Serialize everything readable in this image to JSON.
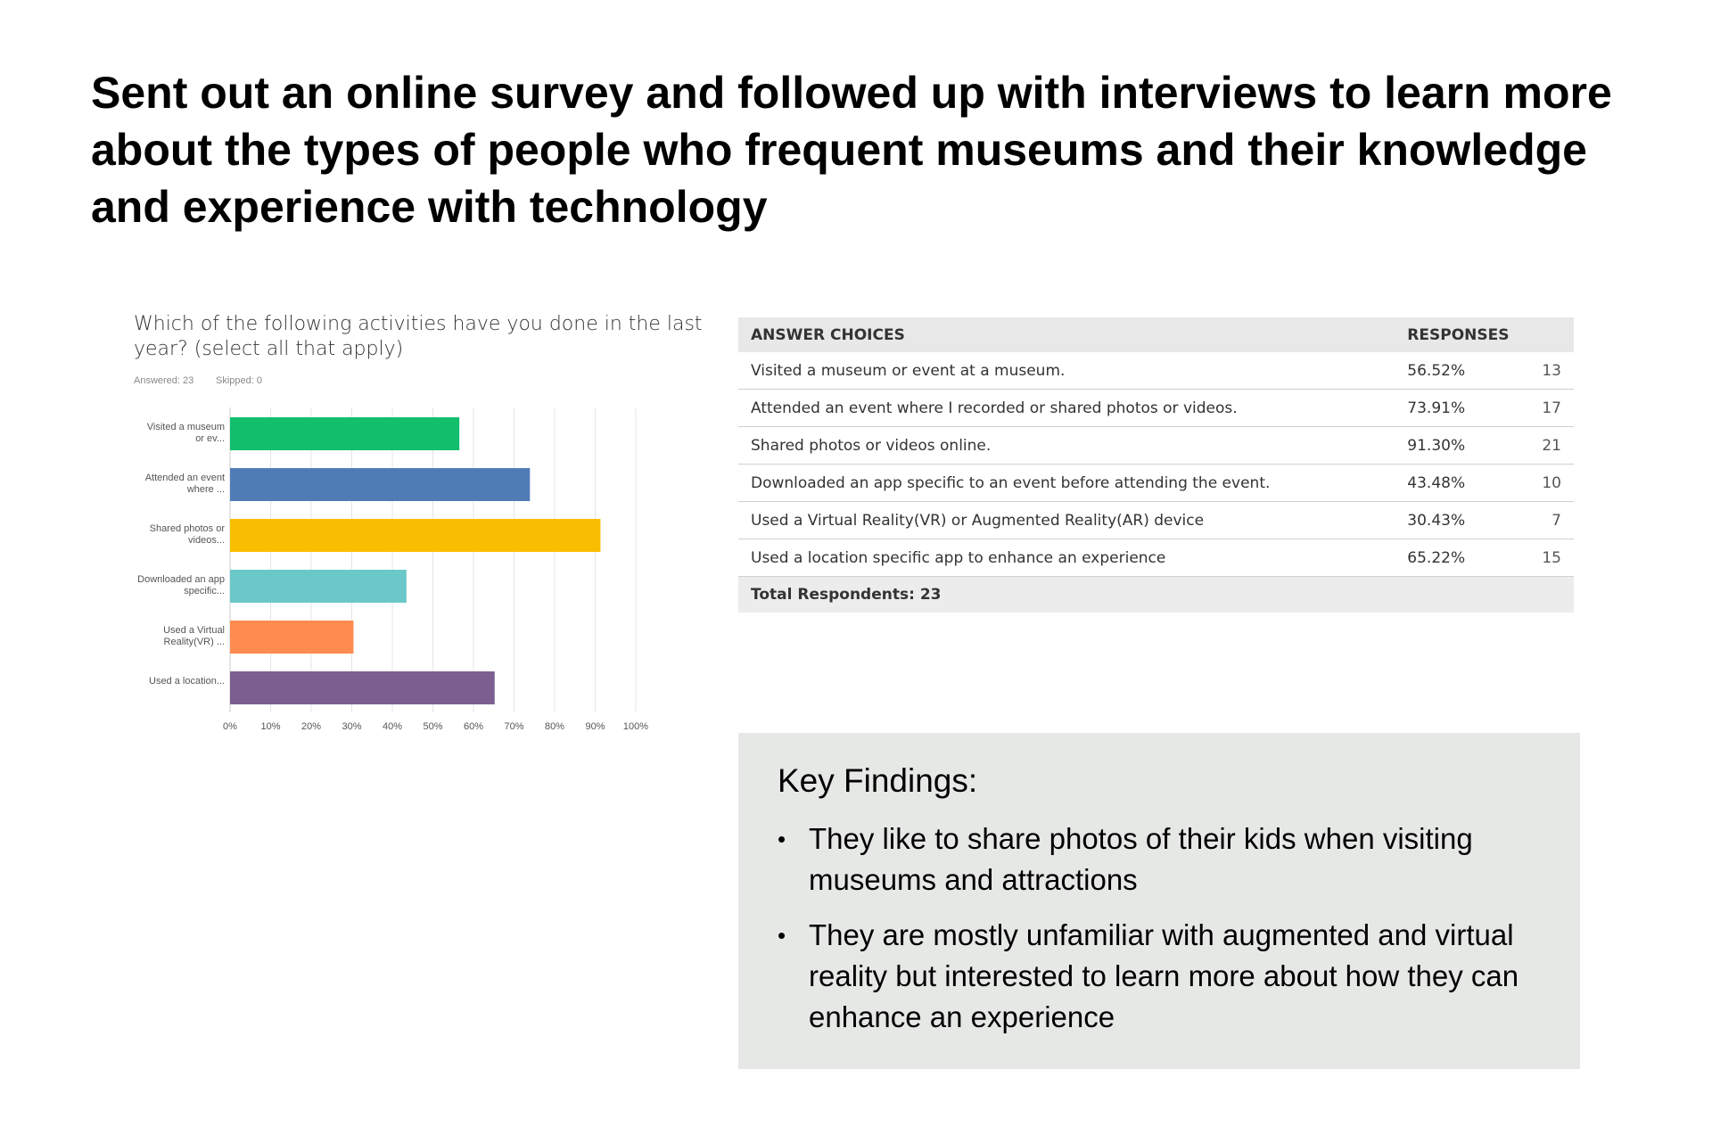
{
  "header": {
    "title": "Sent out an online survey and followed up with interviews to learn more about the types of people who frequent museums and their knowledge and experience with technology"
  },
  "chart_data": {
    "type": "bar",
    "orientation": "horizontal",
    "title": "Which of the following activities have you done in the last year? (select all that apply)",
    "answered": "Answered: 23",
    "skipped": "Skipped: 0",
    "categories": [
      "Visited a museum or ev...",
      "Attended an event where ...",
      "Shared photos or videos...",
      "Downloaded an app specific...",
      "Used a Virtual Reality(VR) ...",
      "Used a location..."
    ],
    "series": [
      {
        "name": "Responses",
        "values": [
          56.52,
          73.91,
          91.3,
          43.48,
          30.43,
          65.22
        ],
        "colors": [
          "#11bf6c",
          "#507cb6",
          "#f9be02",
          "#6bc8c8",
          "#ff8b4f",
          "#7d5e90"
        ]
      }
    ],
    "xlim": [
      0,
      100
    ],
    "xticks": [
      {
        "value": 0,
        "label": "0%"
      },
      {
        "value": 10,
        "label": "10%"
      },
      {
        "value": 20,
        "label": "20%"
      },
      {
        "value": 30,
        "label": "30%"
      },
      {
        "value": 40,
        "label": "40%"
      },
      {
        "value": 50,
        "label": "50%"
      },
      {
        "value": 60,
        "label": "60%"
      },
      {
        "value": 70,
        "label": "70%"
      },
      {
        "value": 80,
        "label": "80%"
      },
      {
        "value": 90,
        "label": "90%"
      },
      {
        "value": 100,
        "label": "100%"
      }
    ],
    "grid": true
  },
  "table": {
    "header": [
      "ANSWER CHOICES",
      "RESPONSES"
    ],
    "rows": [
      [
        "Visited a museum or event at a museum.",
        "56.52%",
        "13"
      ],
      [
        "Attended an event where I recorded or shared photos or videos.",
        "73.91%",
        "17"
      ],
      [
        "Shared photos or videos online.",
        "91.30%",
        "21"
      ],
      [
        "Downloaded an app specific to an event before attending the event.",
        "43.48%",
        "10"
      ],
      [
        "Used a Virtual Reality(VR) or Augmented Reality(AR) device",
        "30.43%",
        "7"
      ],
      [
        "Used a location specific app to enhance an experience",
        "65.22%",
        "15"
      ]
    ],
    "total": "Total Respondents: 23"
  },
  "findings": {
    "heading": "Key Findings:",
    "items": [
      "They like to share photos of their kids when visiting museums and attractions",
      "They are mostly unfamiliar with augmented and virtual reality but interested to learn more about how they can enhance an experience"
    ]
  }
}
